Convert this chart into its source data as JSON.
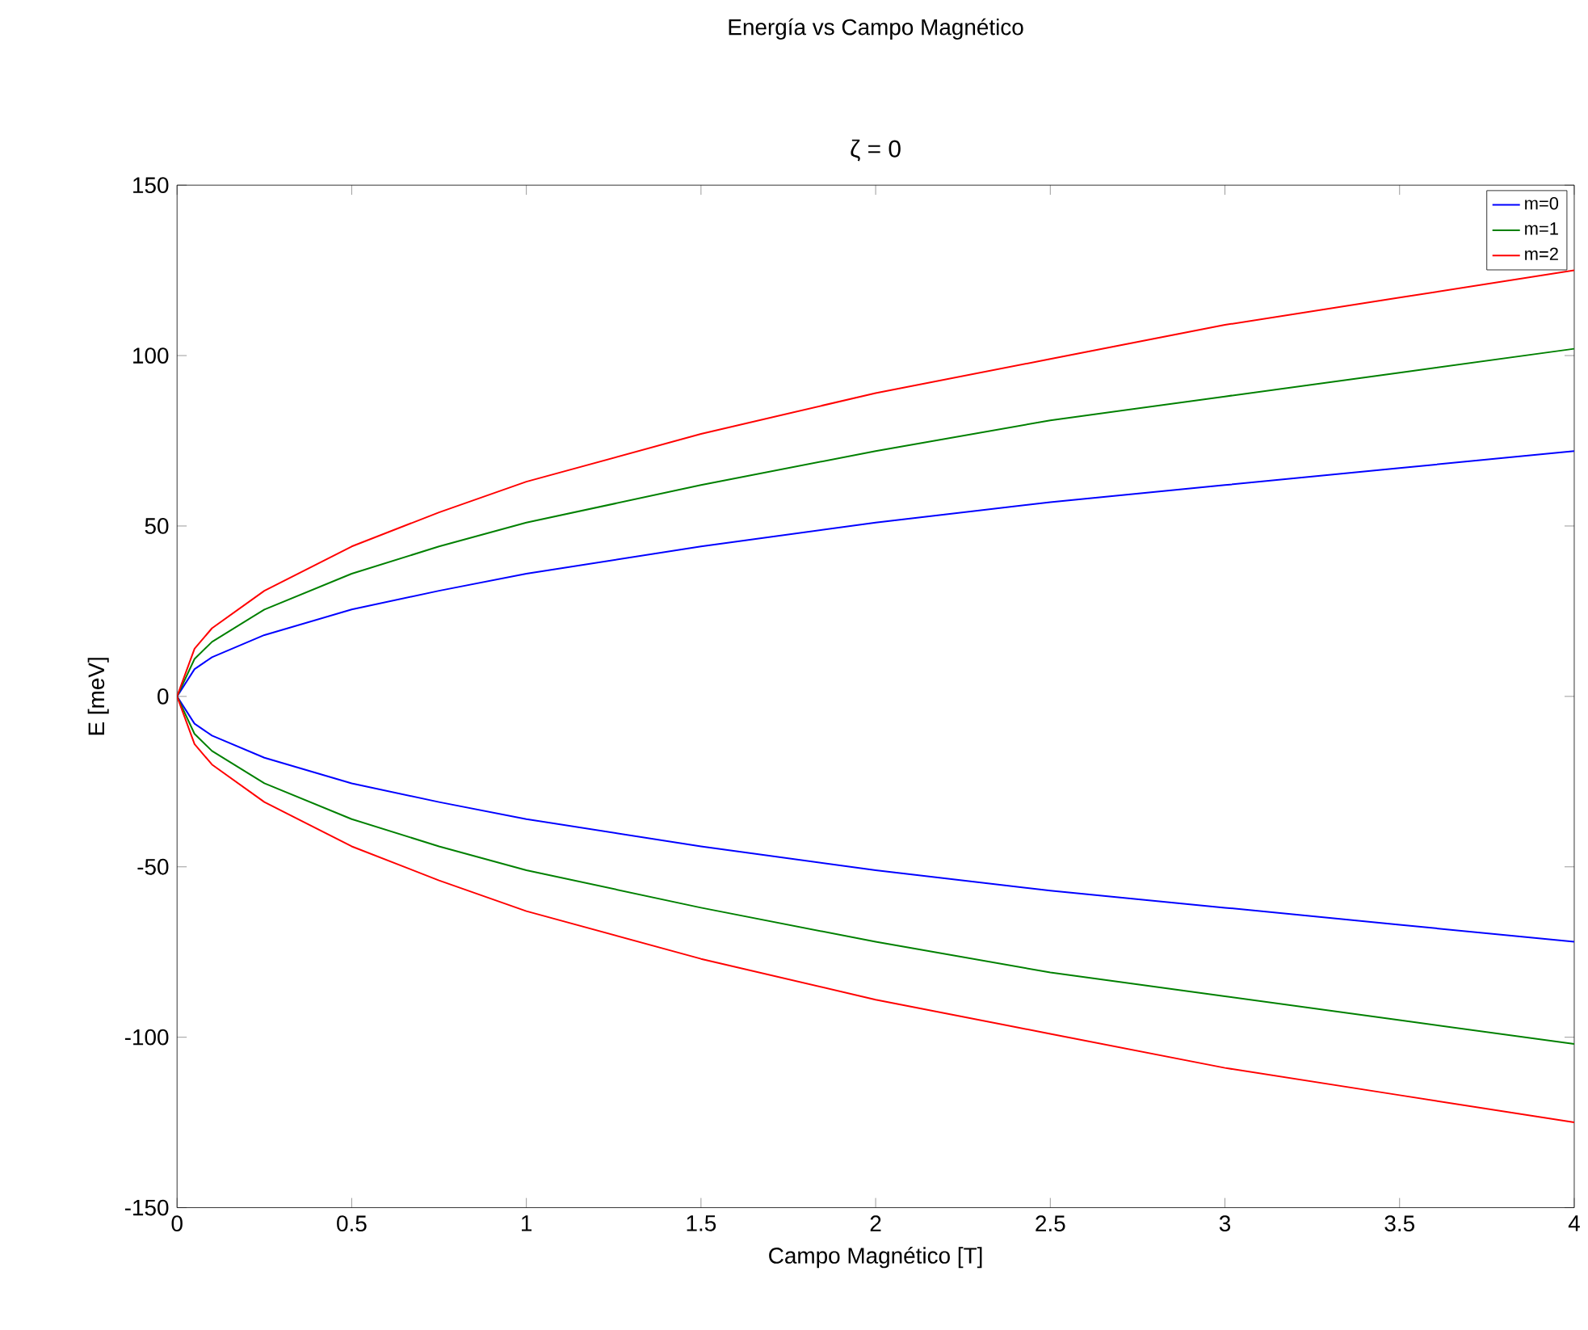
{
  "chart_data": {
    "type": "line",
    "title": "Energía vs Campo Magnético",
    "subtitle": "ζ = 0",
    "xlabel": "Campo Magnético [T]",
    "ylabel": "E [meV]",
    "x": [
      0,
      0.05,
      0.1,
      0.25,
      0.5,
      0.75,
      1,
      1.5,
      2,
      2.5,
      3,
      3.5,
      4
    ],
    "series": [
      {
        "name": "m=0",
        "color": "#0000ff",
        "values": [
          0,
          8,
          11.5,
          18,
          25.5,
          31,
          36,
          44,
          51,
          57,
          62,
          67,
          72
        ]
      },
      {
        "name": "m=1",
        "color": "#008000",
        "values": [
          0,
          11,
          16,
          25.5,
          36,
          44,
          51,
          62,
          72,
          81,
          88,
          95,
          102
        ]
      },
      {
        "name": "m=2",
        "color": "#ff0000",
        "values": [
          0,
          14,
          20,
          31,
          44,
          54,
          63,
          77,
          89,
          99,
          109,
          117,
          125
        ]
      },
      {
        "color": "#0000ff",
        "values": [
          0,
          -8,
          -11.5,
          -18,
          -25.5,
          -31,
          -36,
          -44,
          -51,
          -57,
          -62,
          -67,
          -72
        ]
      },
      {
        "color": "#008000",
        "values": [
          0,
          -11,
          -16,
          -25.5,
          -36,
          -44,
          -51,
          -62,
          -72,
          -81,
          -88,
          -95,
          -102
        ]
      },
      {
        "color": "#ff0000",
        "values": [
          0,
          -14,
          -20,
          -31,
          -44,
          -54,
          -63,
          -77,
          -89,
          -99,
          -109,
          -117,
          -125
        ]
      }
    ],
    "xlim": [
      0,
      4
    ],
    "ylim": [
      -150,
      150
    ],
    "xticks": [
      0,
      0.5,
      1,
      1.5,
      2,
      2.5,
      3,
      3.5,
      4
    ],
    "yticks": [
      -150,
      -100,
      -50,
      0,
      50,
      100,
      150
    ],
    "legend": "top right"
  }
}
